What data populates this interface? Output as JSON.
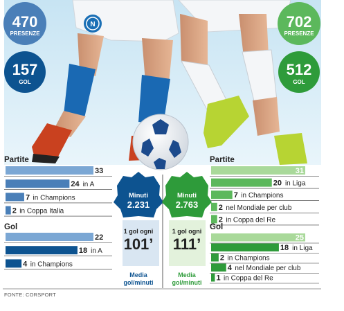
{
  "colors": {
    "blue_dark": "#0d5390",
    "blue_mid": "#4a7fb8",
    "blue_light": "#7ba7d4",
    "green_dark": "#2e9b3a",
    "green_mid": "#5cb85c",
    "green_light": "#a9d99a",
    "panel_blue": "#d9e6f2",
    "panel_green": "#e3f2dc"
  },
  "left_player": {
    "presenze_value": "470",
    "presenze_label": "PRESENZE",
    "gol_value": "157",
    "gol_label": "GOL",
    "minutes_label": "Minuti",
    "minutes_value": "2.231",
    "ratio_label": "1 gol ogni",
    "ratio_value": "101’",
    "ratio_caption_line1": "Media",
    "ratio_caption_line2": "gol/minuti"
  },
  "right_player": {
    "presenze_value": "702",
    "presenze_label": "PRESENZE",
    "gol_value": "512",
    "gol_label": "GOL",
    "minutes_label": "Minuti",
    "minutes_value": "2.763",
    "ratio_label": "1 gol ogni",
    "ratio_value": "111’",
    "ratio_caption_line1": "Media",
    "ratio_caption_line2": "gol/minuti"
  },
  "source": "FONTE: CORSPORT",
  "chart_data": [
    {
      "type": "bar",
      "title": "Partite",
      "side": "left",
      "categories": [
        "",
        "in A",
        "in Champions",
        "in Coppa Italia"
      ],
      "values": [
        33,
        24,
        7,
        2
      ]
    },
    {
      "type": "bar",
      "title": "Gol",
      "side": "left",
      "categories": [
        "",
        "in A",
        "in Champions"
      ],
      "values": [
        22,
        18,
        4
      ]
    },
    {
      "type": "bar",
      "title": "Partite",
      "side": "right",
      "categories": [
        "",
        "in Liga",
        "in Champions",
        "nel Mondiale per club",
        "in Coppa del Re"
      ],
      "values": [
        31,
        20,
        7,
        2,
        2
      ]
    },
    {
      "type": "bar",
      "title": "Gol",
      "side": "right",
      "categories": [
        "",
        "in Liga",
        "in Champions",
        "nel Mondiale per club",
        "in Coppa del Re"
      ],
      "values": [
        25,
        18,
        2,
        4,
        1
      ]
    }
  ]
}
